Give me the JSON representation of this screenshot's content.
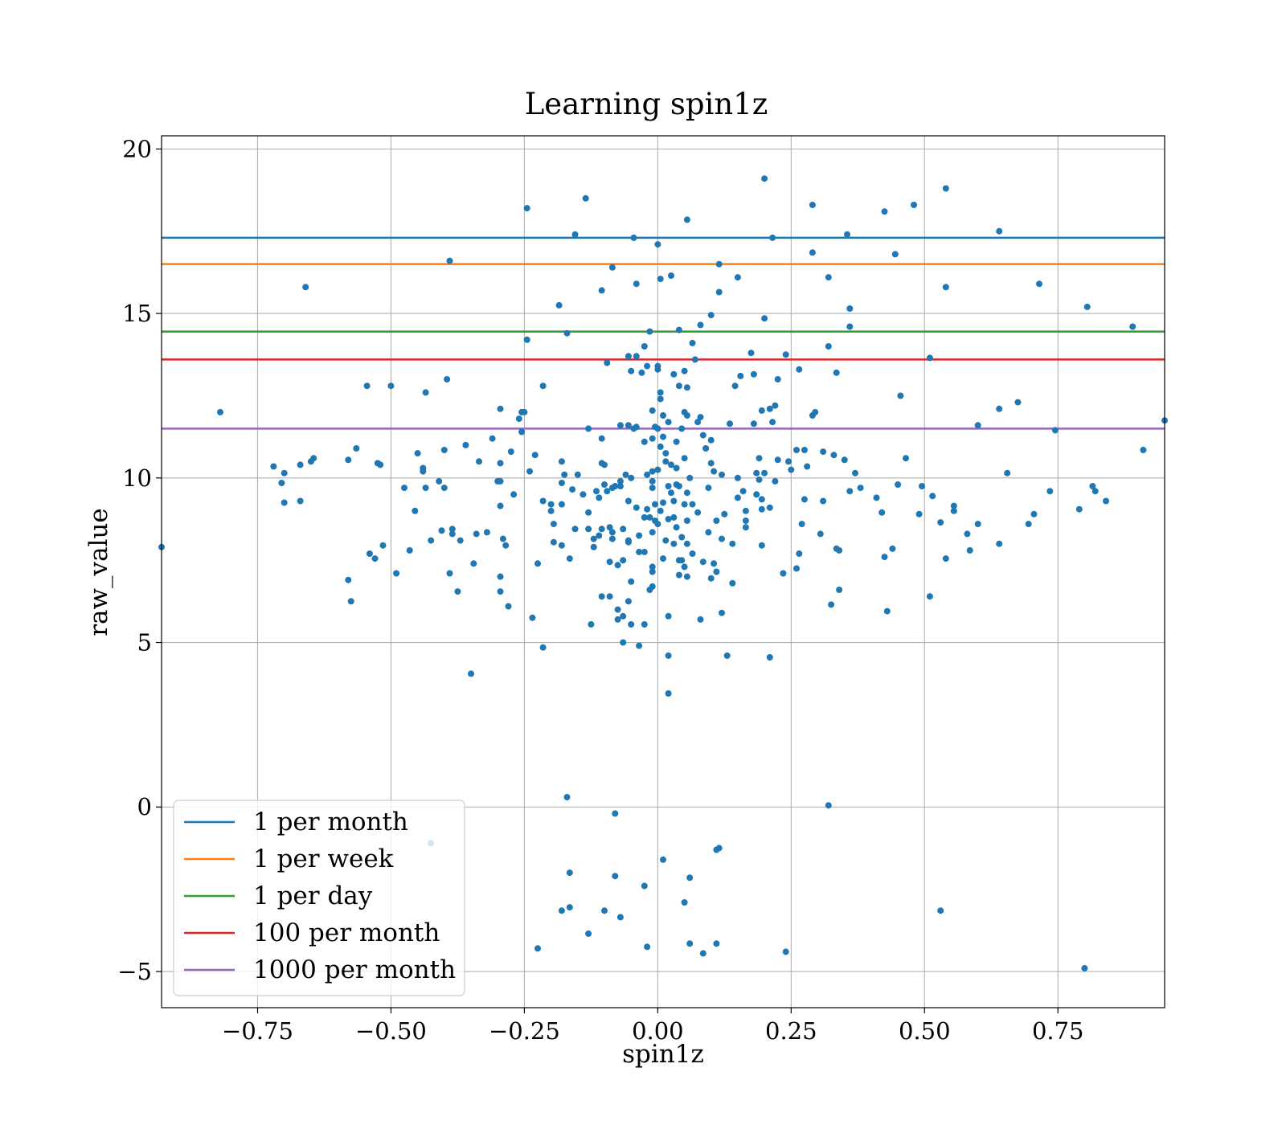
{
  "chart_data": {
    "type": "scatter",
    "title": "Learning spin1z",
    "xlabel": "spin1z",
    "ylabel": "raw_value",
    "xlim": [
      -0.93,
      0.95
    ],
    "ylim": [
      -6.1,
      20.4
    ],
    "grid": true,
    "legend_position": "bottom-left",
    "x_ticks": [
      -0.75,
      -0.5,
      -0.25,
      0.0,
      0.25,
      0.5,
      0.75
    ],
    "x_tick_labels": [
      "−0.75",
      "−0.50",
      "−0.25",
      "0.00",
      "0.25",
      "0.50",
      "0.75"
    ],
    "y_ticks": [
      -5,
      0,
      5,
      10,
      15,
      20
    ],
    "y_tick_labels": [
      "−5",
      "0",
      "5",
      "10",
      "15",
      "20"
    ],
    "point_color": "#1f77b4",
    "hlines": [
      {
        "name": "1 per month",
        "y": 17.3,
        "color": "#1f77b4"
      },
      {
        "name": "1 per week",
        "y": 16.5,
        "color": "#ff7f0e"
      },
      {
        "name": "1 per day",
        "y": 14.45,
        "color": "#2ca02c"
      },
      {
        "name": "100 per month",
        "y": 13.6,
        "color": "#d62728"
      },
      {
        "name": "1000 per month",
        "y": 11.5,
        "color": "#9467bd"
      }
    ],
    "points": [
      [
        -0.93,
        7.9
      ],
      [
        -0.82,
        12.0
      ],
      [
        -0.72,
        10.35
      ],
      [
        -0.7,
        10.15
      ],
      [
        -0.705,
        9.85
      ],
      [
        -0.7,
        9.25
      ],
      [
        -0.67,
        10.4
      ],
      [
        -0.67,
        9.3
      ],
      [
        -0.66,
        15.8
      ],
      [
        -0.65,
        10.5
      ],
      [
        -0.645,
        10.6
      ],
      [
        -0.58,
        10.55
      ],
      [
        -0.58,
        6.9
      ],
      [
        -0.575,
        6.25
      ],
      [
        -0.565,
        10.9
      ],
      [
        -0.545,
        12.8
      ],
      [
        -0.54,
        7.7
      ],
      [
        -0.53,
        7.55
      ],
      [
        -0.525,
        10.45
      ],
      [
        -0.52,
        10.4
      ],
      [
        -0.515,
        7.95
      ],
      [
        -0.5,
        12.8
      ],
      [
        -0.49,
        7.1
      ],
      [
        -0.475,
        9.7
      ],
      [
        -0.465,
        7.8
      ],
      [
        -0.455,
        9.0
      ],
      [
        -0.45,
        10.75
      ],
      [
        -0.44,
        10.3
      ],
      [
        -0.44,
        10.2
      ],
      [
        -0.435,
        9.7
      ],
      [
        -0.435,
        12.6
      ],
      [
        -0.425,
        8.1
      ],
      [
        -0.41,
        9.9
      ],
      [
        -0.405,
        8.4
      ],
      [
        -0.4,
        10.85
      ],
      [
        -0.4,
        9.7
      ],
      [
        -0.395,
        13.0
      ],
      [
        -0.39,
        16.6
      ],
      [
        -0.39,
        7.1
      ],
      [
        -0.385,
        8.45
      ],
      [
        -0.385,
        8.3
      ],
      [
        -0.375,
        6.55
      ],
      [
        -0.37,
        8.1
      ],
      [
        -0.36,
        11.0
      ],
      [
        -0.35,
        4.05
      ],
      [
        -0.345,
        7.4
      ],
      [
        -0.34,
        8.3
      ],
      [
        -0.335,
        10.5
      ],
      [
        -0.32,
        8.35
      ],
      [
        -0.31,
        11.2
      ],
      [
        -0.3,
        9.9
      ],
      [
        -0.295,
        12.1
      ],
      [
        -0.295,
        10.45
      ],
      [
        -0.295,
        9.9
      ],
      [
        -0.295,
        9.15
      ],
      [
        -0.295,
        7.0
      ],
      [
        -0.295,
        6.55
      ],
      [
        -0.29,
        8.15
      ],
      [
        -0.285,
        7.95
      ],
      [
        -0.28,
        6.1
      ],
      [
        -0.275,
        10.8
      ],
      [
        -0.27,
        9.5
      ],
      [
        -0.26,
        11.8
      ],
      [
        -0.255,
        11.4
      ],
      [
        -0.255,
        12.0
      ],
      [
        -0.25,
        12.0
      ],
      [
        -0.245,
        14.2
      ],
      [
        -0.245,
        18.2
      ],
      [
        -0.24,
        10.2
      ],
      [
        -0.235,
        5.75
      ],
      [
        -0.23,
        10.7
      ],
      [
        -0.225,
        7.4
      ],
      [
        -0.215,
        12.8
      ],
      [
        -0.215,
        9.3
      ],
      [
        -0.215,
        4.85
      ],
      [
        -0.2,
        9.2
      ],
      [
        -0.2,
        9.0
      ],
      [
        -0.195,
        8.6
      ],
      [
        -0.195,
        8.05
      ],
      [
        -0.185,
        15.25
      ],
      [
        -0.18,
        10.5
      ],
      [
        -0.18,
        9.85
      ],
      [
        -0.18,
        9.2
      ],
      [
        -0.18,
        7.95
      ],
      [
        -0.175,
        10.1
      ],
      [
        -0.17,
        14.4
      ],
      [
        -0.165,
        7.55
      ],
      [
        -0.16,
        9.65
      ],
      [
        -0.155,
        8.45
      ],
      [
        -0.155,
        17.4
      ],
      [
        -0.15,
        10.1
      ],
      [
        -0.14,
        9.5
      ],
      [
        -0.135,
        18.5
      ],
      [
        -0.13,
        11.5
      ],
      [
        -0.13,
        8.95
      ],
      [
        -0.13,
        8.45
      ],
      [
        -0.125,
        5.55
      ],
      [
        -0.12,
        8.15
      ],
      [
        -0.12,
        7.9
      ],
      [
        -0.115,
        9.6
      ],
      [
        -0.11,
        9.4
      ],
      [
        -0.11,
        8.25
      ],
      [
        -0.105,
        15.7
      ],
      [
        -0.105,
        11.2
      ],
      [
        -0.105,
        10.45
      ],
      [
        -0.105,
        8.45
      ],
      [
        -0.105,
        6.4
      ],
      [
        -0.1,
        10.4
      ],
      [
        -0.1,
        9.8
      ],
      [
        -0.095,
        13.5
      ],
      [
        -0.095,
        9.6
      ],
      [
        -0.09,
        8.5
      ],
      [
        -0.09,
        7.45
      ],
      [
        -0.09,
        6.4
      ],
      [
        -0.085,
        16.4
      ],
      [
        -0.085,
        9.7
      ],
      [
        -0.085,
        8.35
      ],
      [
        -0.085,
        8.15
      ],
      [
        -0.08,
        9.75
      ],
      [
        -0.075,
        7.35
      ],
      [
        -0.075,
        6.0
      ],
      [
        -0.075,
        5.7
      ],
      [
        -0.07,
        11.6
      ],
      [
        -0.07,
        9.9
      ],
      [
        -0.07,
        9.75
      ],
      [
        -0.065,
        8.45
      ],
      [
        -0.065,
        7.5
      ],
      [
        -0.065,
        5.8
      ],
      [
        -0.065,
        5.0
      ],
      [
        -0.06,
        10.1
      ],
      [
        -0.055,
        13.7
      ],
      [
        -0.055,
        11.6
      ],
      [
        -0.055,
        9.3
      ],
      [
        -0.055,
        8.1
      ],
      [
        -0.055,
        8.05
      ],
      [
        -0.055,
        6.25
      ],
      [
        -0.05,
        13.25
      ],
      [
        -0.05,
        10.0
      ],
      [
        -0.05,
        6.85
      ],
      [
        -0.05,
        5.55
      ],
      [
        -0.045,
        17.3
      ],
      [
        -0.045,
        11.5
      ],
      [
        -0.04,
        15.9
      ],
      [
        -0.04,
        13.7
      ],
      [
        -0.04,
        11.55
      ],
      [
        -0.04,
        9.1
      ],
      [
        -0.035,
        8.25
      ],
      [
        -0.035,
        7.75
      ],
      [
        -0.035,
        4.9
      ],
      [
        -0.03,
        13.2
      ],
      [
        -0.025,
        14.0
      ],
      [
        -0.025,
        11.1
      ],
      [
        -0.025,
        8.8
      ],
      [
        -0.025,
        7.75
      ],
      [
        -0.025,
        5.55
      ],
      [
        -0.02,
        13.4
      ],
      [
        -0.02,
        10.1
      ],
      [
        -0.02,
        9.05
      ],
      [
        -0.015,
        8.8
      ],
      [
        -0.015,
        6.6
      ],
      [
        -0.015,
        14.45
      ],
      [
        -0.01,
        12.05
      ],
      [
        -0.01,
        11.2
      ],
      [
        -0.01,
        10.2
      ],
      [
        -0.01,
        9.9
      ],
      [
        -0.01,
        9.7
      ],
      [
        -0.01,
        8.35
      ],
      [
        -0.01,
        7.3
      ],
      [
        -0.01,
        7.15
      ],
      [
        -0.01,
        6.7
      ],
      [
        -0.005,
        11.55
      ],
      [
        -0.005,
        9.2
      ],
      [
        -0.005,
        8.7
      ],
      [
        0.0,
        17.1
      ],
      [
        0.0,
        13.3
      ],
      [
        0.0,
        13.4
      ],
      [
        0.0,
        11.5
      ],
      [
        0.0,
        10.25
      ],
      [
        0.0,
        8.6
      ],
      [
        0.005,
        16.05
      ],
      [
        0.005,
        12.6
      ],
      [
        0.005,
        12.4
      ],
      [
        0.005,
        10.95
      ],
      [
        0.005,
        9.0
      ],
      [
        0.01,
        11.9
      ],
      [
        0.01,
        11.25
      ],
      [
        0.01,
        9.25
      ],
      [
        0.01,
        7.55
      ],
      [
        0.015,
        10.75
      ],
      [
        0.015,
        10.5
      ],
      [
        0.015,
        8.1
      ],
      [
        0.02,
        11.7
      ],
      [
        0.02,
        9.75
      ],
      [
        0.02,
        8.75
      ],
      [
        0.02,
        5.8
      ],
      [
        0.02,
        4.6
      ],
      [
        0.02,
        3.45
      ],
      [
        0.025,
        16.15
      ],
      [
        0.025,
        10.4
      ],
      [
        0.025,
        9.55
      ],
      [
        0.03,
        13.15
      ],
      [
        0.03,
        9.3
      ],
      [
        0.03,
        8.8
      ],
      [
        0.03,
        8.0
      ],
      [
        0.035,
        11.1
      ],
      [
        0.035,
        10.3
      ],
      [
        0.035,
        9.8
      ],
      [
        0.035,
        8.5
      ],
      [
        0.04,
        14.5
      ],
      [
        0.04,
        12.8
      ],
      [
        0.04,
        9.75
      ],
      [
        0.04,
        7.5
      ],
      [
        0.04,
        7.05
      ],
      [
        0.045,
        8.2
      ],
      [
        0.045,
        7.5
      ],
      [
        0.045,
        11.5
      ],
      [
        0.05,
        13.25
      ],
      [
        0.05,
        12.0
      ],
      [
        0.05,
        10.6
      ],
      [
        0.05,
        9.2
      ],
      [
        0.05,
        7.3
      ],
      [
        0.055,
        17.85
      ],
      [
        0.055,
        12.75
      ],
      [
        0.055,
        11.9
      ],
      [
        0.055,
        9.55
      ],
      [
        0.055,
        8.7
      ],
      [
        0.055,
        8.0
      ],
      [
        0.055,
        7.0
      ],
      [
        0.06,
        10.0
      ],
      [
        0.065,
        14.1
      ],
      [
        0.065,
        9.2
      ],
      [
        0.065,
        7.7
      ],
      [
        0.07,
        13.6
      ],
      [
        0.075,
        11.7
      ],
      [
        0.075,
        8.95
      ],
      [
        0.08,
        14.65
      ],
      [
        0.08,
        11.85
      ],
      [
        0.08,
        5.7
      ],
      [
        0.085,
        11.3
      ],
      [
        0.085,
        7.45
      ],
      [
        0.09,
        10.9
      ],
      [
        0.095,
        9.7
      ],
      [
        0.095,
        8.35
      ],
      [
        0.1,
        14.95
      ],
      [
        0.1,
        11.15
      ],
      [
        0.1,
        10.45
      ],
      [
        0.1,
        6.95
      ],
      [
        0.105,
        10.2
      ],
      [
        0.105,
        7.4
      ],
      [
        0.11,
        8.7
      ],
      [
        0.11,
        7.15
      ],
      [
        0.115,
        16.5
      ],
      [
        0.115,
        15.65
      ],
      [
        0.12,
        10.1
      ],
      [
        0.12,
        8.15
      ],
      [
        0.12,
        5.9
      ],
      [
        0.125,
        8.9
      ],
      [
        0.13,
        4.6
      ],
      [
        0.135,
        11.65
      ],
      [
        0.14,
        6.8
      ],
      [
        0.14,
        8.0
      ],
      [
        0.145,
        12.8
      ],
      [
        0.15,
        16.1
      ],
      [
        0.15,
        10.0
      ],
      [
        0.15,
        9.4
      ],
      [
        0.155,
        13.1
      ],
      [
        0.16,
        9.6
      ],
      [
        0.165,
        8.7
      ],
      [
        0.165,
        8.5
      ],
      [
        0.165,
        9.0
      ],
      [
        0.175,
        13.8
      ],
      [
        0.18,
        13.15
      ],
      [
        0.18,
        11.65
      ],
      [
        0.185,
        10.15
      ],
      [
        0.185,
        9.5
      ],
      [
        0.19,
        10.6
      ],
      [
        0.19,
        9.95
      ],
      [
        0.195,
        12.05
      ],
      [
        0.195,
        9.35
      ],
      [
        0.195,
        9.05
      ],
      [
        0.195,
        7.95
      ],
      [
        0.2,
        19.1
      ],
      [
        0.2,
        14.85
      ],
      [
        0.2,
        10.15
      ],
      [
        0.21,
        12.1
      ],
      [
        0.21,
        9.1
      ],
      [
        0.21,
        4.55
      ],
      [
        0.215,
        17.3
      ],
      [
        0.215,
        11.7
      ],
      [
        0.22,
        9.9
      ],
      [
        0.22,
        12.2
      ],
      [
        0.225,
        13.0
      ],
      [
        0.225,
        10.55
      ],
      [
        0.235,
        7.1
      ],
      [
        0.24,
        13.75
      ],
      [
        0.245,
        10.5
      ],
      [
        0.25,
        10.25
      ],
      [
        0.26,
        10.85
      ],
      [
        0.26,
        7.25
      ],
      [
        0.265,
        13.3
      ],
      [
        0.265,
        7.7
      ],
      [
        0.27,
        8.6
      ],
      [
        0.275,
        10.85
      ],
      [
        0.275,
        9.35
      ],
      [
        0.28,
        10.35
      ],
      [
        0.29,
        16.85
      ],
      [
        0.29,
        11.9
      ],
      [
        0.29,
        18.3
      ],
      [
        0.295,
        12.0
      ],
      [
        0.305,
        8.3
      ],
      [
        0.31,
        10.8
      ],
      [
        0.31,
        9.3
      ],
      [
        0.32,
        14.0
      ],
      [
        0.32,
        16.1
      ],
      [
        0.325,
        6.15
      ],
      [
        0.33,
        10.7
      ],
      [
        0.335,
        13.2
      ],
      [
        0.335,
        7.85
      ],
      [
        0.34,
        7.8
      ],
      [
        0.34,
        6.6
      ],
      [
        0.35,
        10.55
      ],
      [
        0.355,
        17.4
      ],
      [
        0.36,
        15.15
      ],
      [
        0.36,
        14.6
      ],
      [
        0.36,
        9.6
      ],
      [
        0.37,
        10.15
      ],
      [
        0.38,
        9.7
      ],
      [
        0.41,
        9.4
      ],
      [
        0.42,
        8.95
      ],
      [
        0.425,
        18.1
      ],
      [
        0.425,
        7.6
      ],
      [
        0.43,
        5.95
      ],
      [
        0.44,
        7.85
      ],
      [
        0.445,
        16.8
      ],
      [
        0.45,
        9.8
      ],
      [
        0.455,
        12.5
      ],
      [
        0.465,
        10.6
      ],
      [
        0.48,
        18.3
      ],
      [
        0.49,
        8.9
      ],
      [
        0.495,
        9.75
      ],
      [
        0.51,
        13.65
      ],
      [
        0.51,
        6.4
      ],
      [
        0.515,
        9.45
      ],
      [
        0.53,
        8.65
      ],
      [
        0.54,
        18.8
      ],
      [
        0.54,
        15.8
      ],
      [
        0.54,
        7.55
      ],
      [
        0.555,
        9.15
      ],
      [
        0.555,
        9.0
      ],
      [
        0.58,
        8.3
      ],
      [
        0.585,
        7.8
      ],
      [
        0.6,
        11.6
      ],
      [
        0.6,
        8.6
      ],
      [
        0.64,
        17.5
      ],
      [
        0.64,
        12.1
      ],
      [
        0.64,
        8.0
      ],
      [
        0.655,
        10.15
      ],
      [
        0.675,
        12.3
      ],
      [
        0.695,
        8.6
      ],
      [
        0.705,
        8.9
      ],
      [
        0.715,
        15.9
      ],
      [
        0.735,
        9.6
      ],
      [
        0.745,
        11.45
      ],
      [
        0.79,
        9.05
      ],
      [
        0.805,
        15.2
      ],
      [
        0.815,
        9.75
      ],
      [
        0.82,
        9.6
      ],
      [
        0.84,
        9.3
      ],
      [
        0.89,
        14.6
      ],
      [
        0.91,
        10.85
      ],
      [
        0.95,
        11.75
      ],
      [
        -0.17,
        0.3
      ],
      [
        -0.08,
        -0.2
      ],
      [
        0.32,
        0.05
      ],
      [
        -0.425,
        -1.1
      ],
      [
        0.11,
        -1.3
      ],
      [
        0.115,
        -1.25
      ],
      [
        0.01,
        -1.6
      ],
      [
        -0.165,
        -2.0
      ],
      [
        -0.08,
        -2.1
      ],
      [
        0.06,
        -2.15
      ],
      [
        -0.025,
        -2.4
      ],
      [
        0.05,
        -2.9
      ],
      [
        0.53,
        -3.15
      ],
      [
        -0.18,
        -3.15
      ],
      [
        -0.165,
        -3.05
      ],
      [
        -0.1,
        -3.15
      ],
      [
        -0.07,
        -3.35
      ],
      [
        -0.13,
        -3.85
      ],
      [
        0.06,
        -4.15
      ],
      [
        0.11,
        -4.15
      ],
      [
        -0.02,
        -4.25
      ],
      [
        -0.225,
        -4.3
      ],
      [
        0.085,
        -4.45
      ],
      [
        0.24,
        -4.4
      ],
      [
        0.8,
        -4.9
      ]
    ]
  }
}
